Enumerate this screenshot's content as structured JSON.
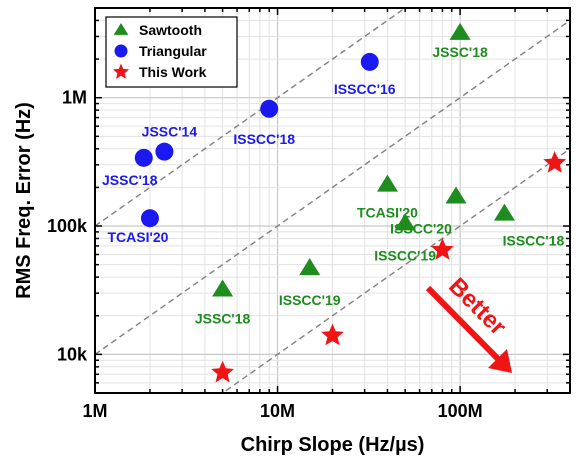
{
  "chart_data": {
    "type": "scatter",
    "title": "",
    "xlabel": "Chirp Slope (Hz/µs)",
    "ylabel": "RMS Freq. Error (Hz)",
    "x_scale": "log",
    "y_scale": "log",
    "xlim": [
      1000000,
      400000000
    ],
    "ylim": [
      5000,
      5000000
    ],
    "x_tick_labels": [
      {
        "value": 1000000,
        "label": "1M"
      },
      {
        "value": 10000000,
        "label": "10M"
      },
      {
        "value": 100000000,
        "label": "100M"
      }
    ],
    "y_tick_labels": [
      {
        "value": 10000,
        "label": "10k"
      },
      {
        "value": 100000,
        "label": "100k"
      },
      {
        "value": 1000000,
        "label": "1M"
      }
    ],
    "grid": true,
    "legend_position": "top-left",
    "series": [
      {
        "name": "Sawtooth",
        "marker": "triangle",
        "color": "#1e8c1e",
        "label_color": "#1e8c1e",
        "points": [
          {
            "x": 100000000,
            "y": 3200000,
            "label": "JSSC'18"
          },
          {
            "x": 40000000,
            "y": 210000,
            "label": "TCASI'20"
          },
          {
            "x": 95000000,
            "y": 170000,
            "label": "ISSCC'20"
          },
          {
            "x": 175000000,
            "y": 125000,
            "label": "ISSCC'18"
          },
          {
            "x": 50000000,
            "y": 105000,
            "label": "ISSCC'19"
          },
          {
            "x": 15000000,
            "y": 47000,
            "label": "ISSCC'19"
          },
          {
            "x": 5000000,
            "y": 32000,
            "label": "JSSC'18"
          }
        ]
      },
      {
        "name": "Triangular",
        "marker": "circle",
        "color": "#1a1af0",
        "label_color": "#1a1af0",
        "points": [
          {
            "x": 32000000,
            "y": 1900000,
            "label": "ISSCC'16"
          },
          {
            "x": 9000000,
            "y": 820000,
            "label": "ISSCC'18"
          },
          {
            "x": 2400000,
            "y": 380000,
            "label": "JSSC'14"
          },
          {
            "x": 1850000,
            "y": 340000,
            "label": "JSSC'18"
          },
          {
            "x": 2000000,
            "y": 115000,
            "label": "TCASI'20"
          }
        ]
      },
      {
        "name": "This Work",
        "marker": "star",
        "color": "#f01414",
        "points": [
          {
            "x": 5000000,
            "y": 7200
          },
          {
            "x": 20000000,
            "y": 14000
          },
          {
            "x": 80000000,
            "y": 65000
          },
          {
            "x": 330000000,
            "y": 310000
          }
        ]
      }
    ],
    "reference_lines": [
      {
        "x": [
          1000000,
          400000000
        ],
        "y": [
          100000,
          40000000
        ]
      },
      {
        "x": [
          1000000,
          400000000
        ],
        "y": [
          10000,
          4000000
        ]
      },
      {
        "x": [
          1000000,
          400000000
        ],
        "y": [
          1000,
          400000
        ]
      }
    ],
    "annotation": {
      "text": "Better",
      "color": "#f01414"
    }
  }
}
